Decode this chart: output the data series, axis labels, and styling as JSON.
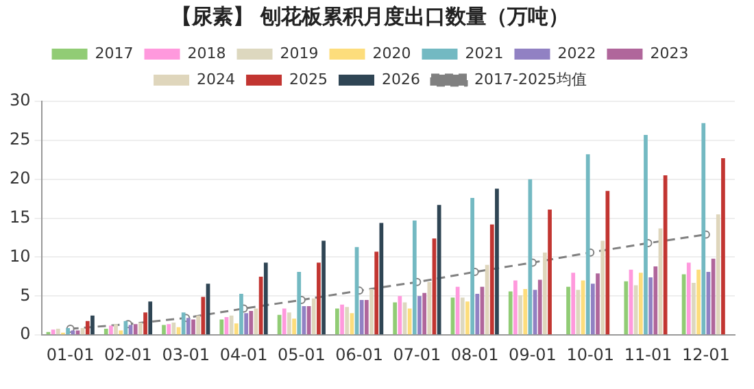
{
  "chart_data": {
    "type": "bar",
    "title": "【尿素】 刨花板累积月度出口数量（万吨）",
    "categories": [
      "01-01",
      "02-01",
      "03-01",
      "04-01",
      "05-01",
      "06-01",
      "07-01",
      "08-01",
      "09-01",
      "10-01",
      "11-01",
      "12-01"
    ],
    "series": [
      {
        "name": "2017-2025均值",
        "type": "line",
        "marker": "circle",
        "line_style": "dashed",
        "color": "#808080",
        "values": [
          0.8,
          1.4,
          2.2,
          3.4,
          4.5,
          5.7,
          6.8,
          8.1,
          9.3,
          10.6,
          11.8,
          12.9
        ]
      },
      {
        "name": "2017",
        "color": "#91cc75",
        "values": [
          0.4,
          0.8,
          1.3,
          2.0,
          2.6,
          3.4,
          4.2,
          4.8,
          5.6,
          6.2,
          6.9,
          7.8
        ]
      },
      {
        "name": "2018",
        "color": "#ff99dd",
        "values": [
          0.7,
          1.2,
          1.4,
          2.3,
          3.4,
          3.9,
          5.0,
          6.2,
          7.0,
          8.0,
          8.4,
          9.3
        ]
      },
      {
        "name": "2019",
        "color": "#ddd8bf",
        "values": [
          0.8,
          1.4,
          1.6,
          2.5,
          2.9,
          3.6,
          4.2,
          4.8,
          5.1,
          5.8,
          6.4,
          6.7
        ]
      },
      {
        "name": "2020",
        "color": "#fddd7c",
        "values": [
          0.3,
          0.6,
          1.0,
          1.5,
          2.1,
          2.8,
          3.4,
          4.3,
          5.9,
          7.0,
          8.0,
          8.4
        ]
      },
      {
        "name": "2021",
        "color": "#73b9c2",
        "values": [
          0.9,
          1.8,
          2.9,
          5.3,
          8.1,
          11.3,
          14.7,
          17.6,
          20.0,
          23.2,
          25.7,
          27.2
        ]
      },
      {
        "name": "2022",
        "color": "#9181c3",
        "values": [
          0.6,
          1.3,
          2.2,
          2.8,
          3.7,
          4.5,
          5.0,
          5.3,
          5.8,
          6.6,
          7.4,
          8.1
        ]
      },
      {
        "name": "2023",
        "color": "#b0669b",
        "values": [
          0.6,
          1.4,
          2.0,
          3.1,
          3.7,
          4.5,
          5.4,
          6.2,
          7.1,
          7.9,
          8.8,
          9.8
        ]
      },
      {
        "name": "2024",
        "color": "#dfd6bc",
        "values": [
          0.9,
          1.6,
          2.5,
          3.4,
          4.7,
          5.9,
          6.8,
          9.0,
          10.6,
          12.1,
          13.7,
          15.5
        ]
      },
      {
        "name": "2025",
        "color": "#c23531",
        "values": [
          1.8,
          2.9,
          4.9,
          7.5,
          9.3,
          10.7,
          12.4,
          14.2,
          16.1,
          18.5,
          20.5,
          22.7
        ]
      },
      {
        "name": "2026",
        "color": "#2f4554",
        "values": [
          2.5,
          4.3,
          6.6,
          9.3,
          12.1,
          14.4,
          16.7,
          18.8,
          null,
          null,
          null,
          null
        ]
      }
    ],
    "ylim": [
      0,
      30
    ],
    "yticks": [
      0,
      5,
      10,
      15,
      20,
      25,
      30
    ],
    "grid": "y",
    "legend": "top"
  }
}
